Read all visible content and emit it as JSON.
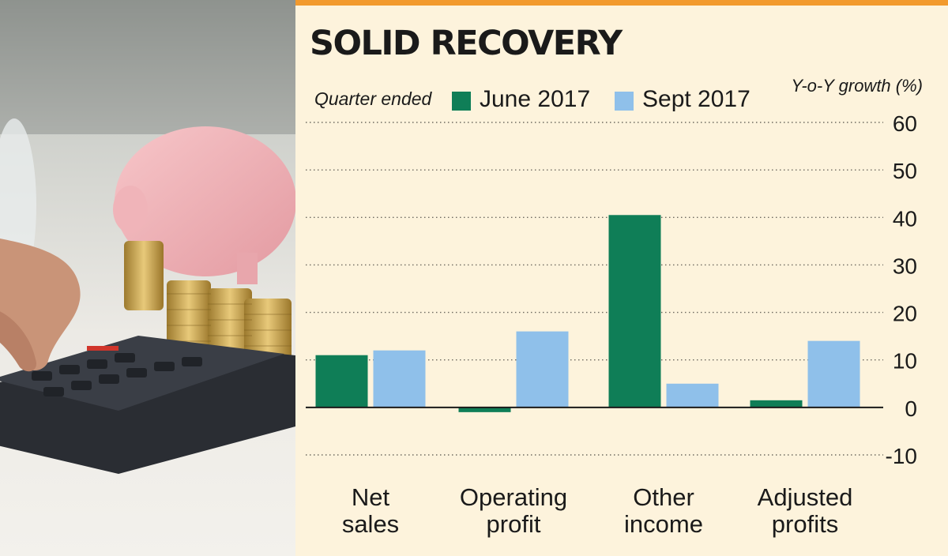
{
  "chart_data": {
    "type": "bar",
    "title": "SOLID RECOVERY",
    "legend_title": "Quarter ended",
    "ylabel": "Y-o-Y growth (%)",
    "categories": [
      [
        "Net",
        "sales"
      ],
      [
        "Operating",
        "profit"
      ],
      [
        "Other",
        "income"
      ],
      [
        "Adjusted",
        "profits"
      ]
    ],
    "series": [
      {
        "name": "June 2017",
        "color": "#0f7e57",
        "values": [
          11,
          -1,
          40.5,
          1.5
        ]
      },
      {
        "name": "Sept 2017",
        "color": "#8fc0ea",
        "values": [
          12,
          16,
          5,
          14
        ]
      }
    ],
    "ylim": [
      -10,
      60
    ],
    "yticks": [
      60,
      50,
      40,
      30,
      20,
      10,
      0,
      -10
    ],
    "grid": "dotted horizontal",
    "legend_position": "top"
  }
}
